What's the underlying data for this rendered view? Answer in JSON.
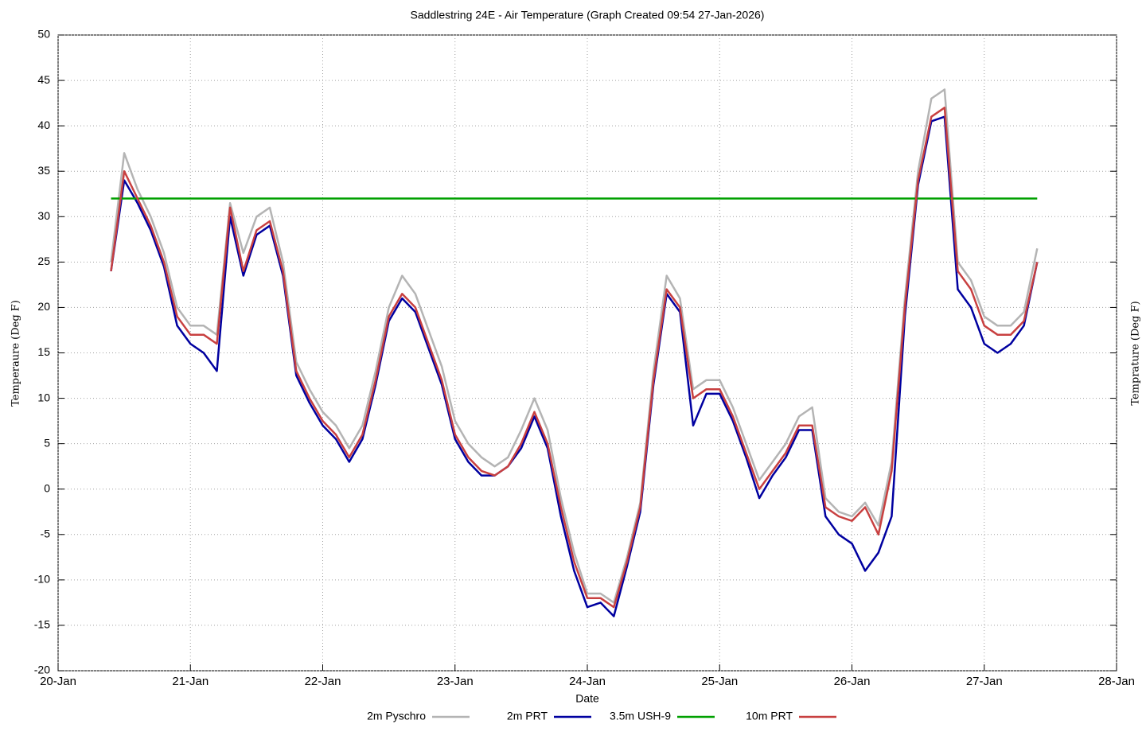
{
  "chart_data": {
    "type": "line",
    "title": "Saddlestring 24E - Air Temperature (Graph Created 09:54 27-Jan-2026)",
    "x_label": "Date",
    "y_label": "Temperaure (Deg F)",
    "y2_label": "Temprature (Deg F)",
    "x": [
      0.4,
      0.5,
      0.6,
      0.7,
      0.8,
      0.9,
      1.0,
      1.1,
      1.2,
      1.3,
      1.4,
      1.5,
      1.6,
      1.7,
      1.8,
      1.9,
      2.0,
      2.1,
      2.2,
      2.3,
      2.4,
      2.5,
      2.6,
      2.7,
      2.8,
      2.9,
      3.0,
      3.1,
      3.2,
      3.3,
      3.4,
      3.5,
      3.6,
      3.7,
      3.8,
      3.9,
      4.0,
      4.1,
      4.2,
      4.3,
      4.4,
      4.5,
      4.6,
      4.7,
      4.8,
      4.9,
      5.0,
      5.1,
      5.2,
      5.3,
      5.4,
      5.5,
      5.6,
      5.7,
      5.8,
      5.9,
      6.0,
      6.1,
      6.2,
      6.3,
      6.4,
      6.5,
      6.6,
      6.7,
      6.8,
      6.9,
      7.0,
      7.1,
      7.2,
      7.3,
      7.4
    ],
    "series": [
      {
        "name": "2m Pyschro",
        "color": "#b4b4b4",
        "values": [
          25,
          37,
          33,
          30,
          26,
          20,
          18,
          18,
          17,
          31.5,
          26,
          30,
          31,
          25,
          14,
          11,
          8.5,
          7,
          4.5,
          7,
          13,
          20,
          23.5,
          21.5,
          17.5,
          13.5,
          7.5,
          5,
          3.5,
          2.5,
          3.5,
          6.5,
          10,
          6.5,
          -1,
          -7,
          -11.5,
          -11.5,
          -12.5,
          -7.5,
          -1.5,
          13,
          23.5,
          21,
          11,
          12,
          12,
          9,
          5,
          1,
          3,
          5,
          8,
          9,
          -1,
          -2.5,
          -3,
          -1.5,
          -4,
          3,
          21,
          35,
          43,
          44,
          25,
          23,
          19,
          18,
          18,
          19.5,
          26.5
        ]
      },
      {
        "name": "2m PRT",
        "color": "#0000a0",
        "values": [
          24,
          34,
          31.5,
          28.5,
          24.5,
          18,
          16,
          15,
          13,
          30,
          23.5,
          28,
          29,
          23.5,
          12.5,
          9.5,
          7,
          5.5,
          3,
          5.5,
          11.5,
          18.5,
          21,
          19.5,
          15.5,
          11.5,
          5.5,
          3,
          1.5,
          1.5,
          2.5,
          4.5,
          8,
          4.5,
          -3,
          -9,
          -13,
          -12.5,
          -14,
          -8.5,
          -2.5,
          11.5,
          21.5,
          19.5,
          7,
          10.5,
          10.5,
          7.5,
          3.5,
          -1,
          1.5,
          3.5,
          6.5,
          6.5,
          -3,
          -5,
          -6,
          -9,
          -7,
          -3,
          19,
          33.5,
          40.5,
          41,
          22,
          20,
          16,
          15,
          16,
          18,
          25
        ]
      },
      {
        "name": "3.5m USH-9",
        "color": "#00a000",
        "values": [
          32,
          32,
          32,
          32,
          32,
          32,
          32,
          32,
          32,
          32,
          32,
          32,
          32,
          32,
          32,
          32,
          32,
          32,
          32,
          32,
          32,
          32,
          32,
          32,
          32,
          32,
          32,
          32,
          32,
          32,
          32,
          32,
          32,
          32,
          32,
          32,
          32,
          32,
          32,
          32,
          32,
          32,
          32,
          32,
          32,
          32,
          32,
          32,
          32,
          32,
          32,
          32,
          32,
          32,
          32,
          32,
          32,
          32,
          32,
          32,
          32,
          32,
          32,
          32,
          32,
          32,
          32,
          32,
          32,
          32,
          32
        ]
      },
      {
        "name": "10m PRT",
        "color": "#c84040",
        "values": [
          24,
          35,
          32,
          29,
          25,
          19,
          17,
          17,
          16,
          31,
          24,
          28.5,
          29.5,
          24,
          13,
          10,
          7.5,
          6,
          3.5,
          6,
          12,
          19,
          21.5,
          20,
          16,
          12,
          6,
          3.5,
          2,
          1.5,
          2.5,
          5,
          8.5,
          5,
          -2,
          -8,
          -12,
          -12,
          -13,
          -8,
          -2,
          12,
          22,
          20,
          10,
          11,
          11,
          8,
          4,
          0,
          2,
          4,
          7,
          7,
          -2,
          -3,
          -3.5,
          -2,
          -5,
          2,
          20,
          34,
          41,
          42,
          24,
          22,
          18,
          17,
          17,
          18.5,
          25
        ]
      }
    ],
    "xlim": [
      0,
      8
    ],
    "xticks": [
      {
        "value": 0,
        "label": "20-Jan"
      },
      {
        "value": 1,
        "label": "21-Jan"
      },
      {
        "value": 2,
        "label": "22-Jan"
      },
      {
        "value": 3,
        "label": "23-Jan"
      },
      {
        "value": 4,
        "label": "24-Jan"
      },
      {
        "value": 5,
        "label": "25-Jan"
      },
      {
        "value": 6,
        "label": "26-Jan"
      },
      {
        "value": 7,
        "label": "27-Jan"
      },
      {
        "value": 8,
        "label": "28-Jan"
      }
    ],
    "ylim": [
      -20,
      50
    ],
    "yticks": [
      -20,
      -15,
      -10,
      -5,
      0,
      5,
      10,
      15,
      20,
      25,
      30,
      35,
      40,
      45,
      50
    ],
    "grid": true,
    "legend": "bottom"
  }
}
